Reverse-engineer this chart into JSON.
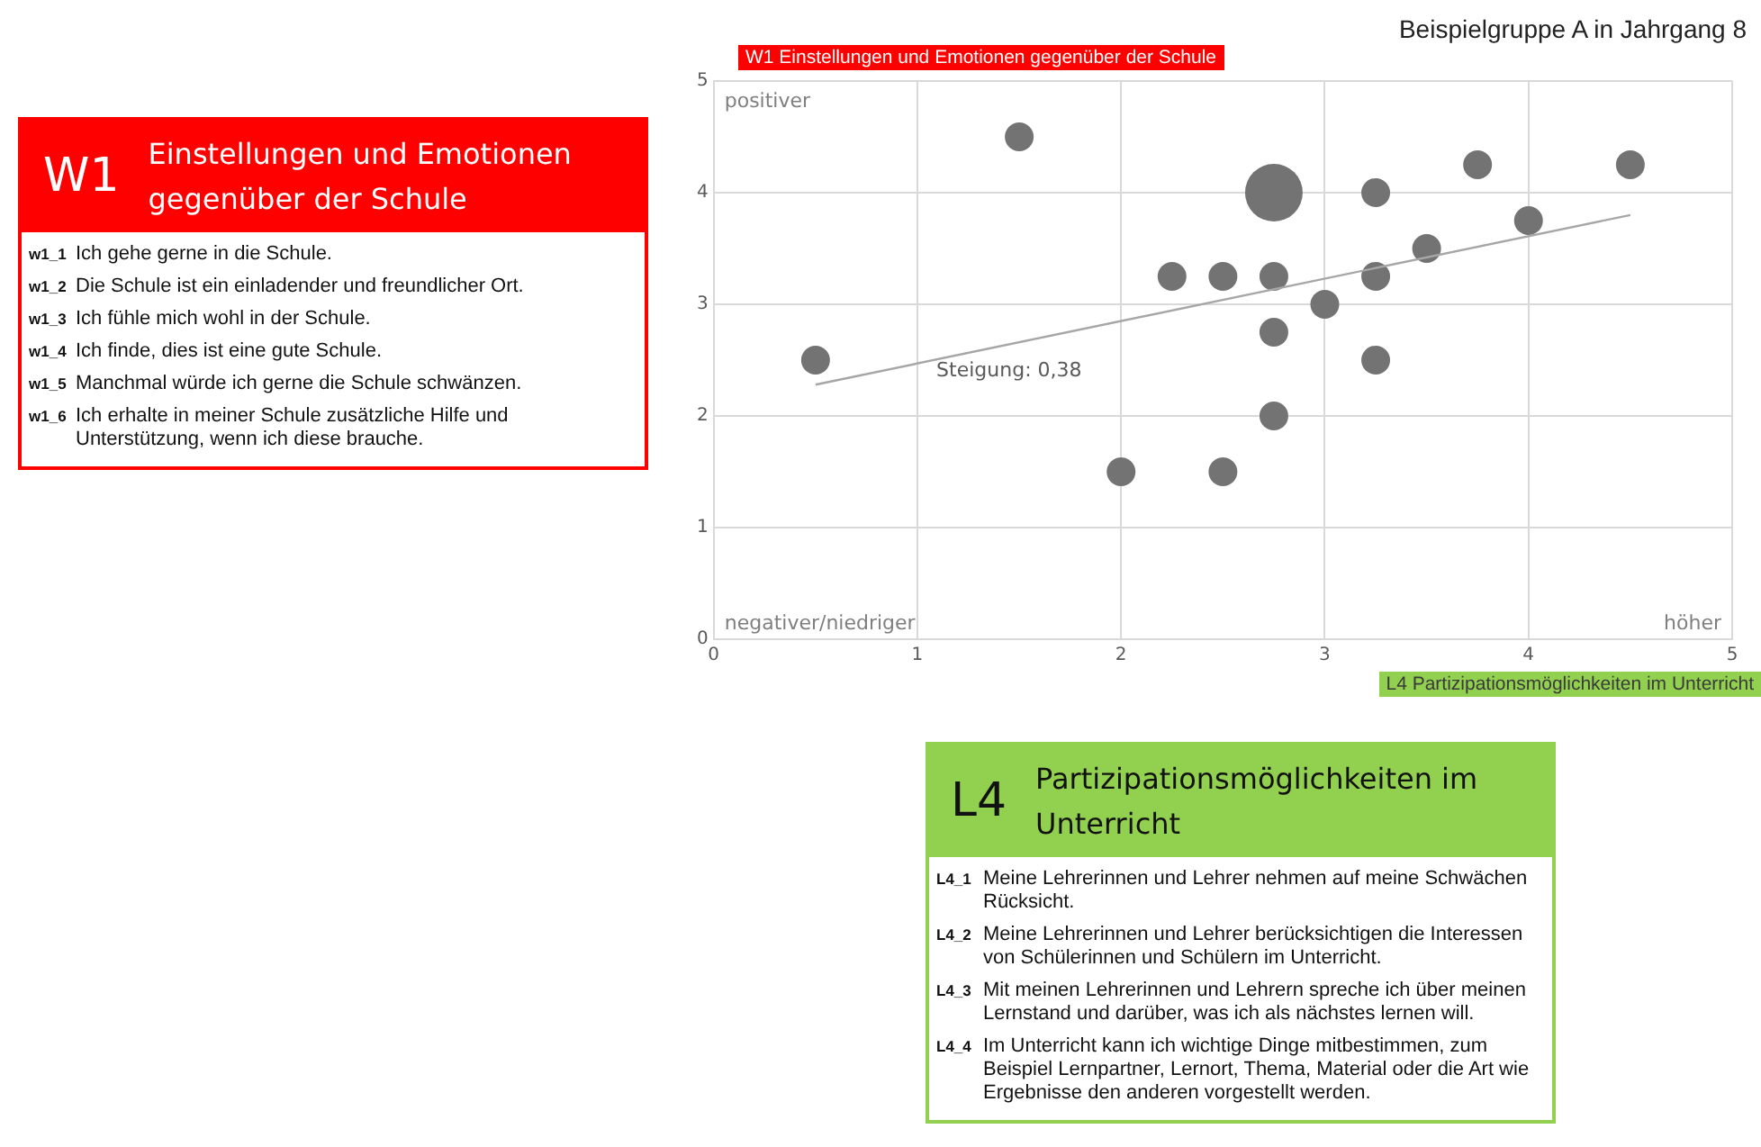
{
  "chart_data": [
    {
      "type": "bubble",
      "title": "Beispielgruppe A in Jahrgang 8",
      "xlabel": "L4 Partizipationsmöglichkeiten im Unterricht",
      "ylabel": "W1 Einstellungen und Emotionen gegenüber der Schule",
      "series": [
        {
          "type": "bubble",
          "color": "#737373",
          "x": [
            0.5,
            1.5,
            2.75,
            3.25,
            3.75,
            4.5,
            4,
            3.5,
            2.25,
            2.5,
            2.75,
            3.25,
            3,
            2.75,
            3.25,
            2.75,
            2,
            2.5
          ],
          "values": [
            2.5,
            4.5,
            4,
            4,
            4.25,
            4.25,
            3.75,
            3.5,
            3.25,
            3.25,
            3.25,
            3.25,
            3,
            2.75,
            2.5,
            2,
            1.5,
            1.5
          ],
          "sizes": [
            0.25,
            0.25,
            1,
            0.25,
            0.25,
            0.25,
            0.25,
            0.25,
            0.25,
            0.25,
            0.25,
            0.25,
            0.25,
            0.25,
            0.25,
            0.25,
            0.25,
            0.25
          ]
        },
        {
          "type": "line",
          "color": "#a6a6a6",
          "x": [
            0.5,
            4.5
          ],
          "values": [
            2.28,
            3.8
          ]
        }
      ],
      "xlim": [
        0,
        5
      ],
      "xticks": [
        0,
        1,
        2,
        3,
        4,
        5
      ],
      "ylim": [
        0,
        5
      ],
      "yticks": [
        0,
        1,
        2,
        3,
        4,
        5
      ],
      "grid": true,
      "legend": false,
      "annotations": [
        "positiver",
        "negativer/niedriger",
        "höher",
        "Steigung: 0,38"
      ]
    },
    {
      "type": "other",
      "title": "W1",
      "subtitle": "Einstellungen und Emotionen gegenüber der Schule",
      "color": "#ff0000",
      "annotations": [
        "w1_1 Ich gehe gerne in die Schule.",
        "w1_2 Die Schule ist ein einladender und freundlicher Ort.",
        "w1_3 Ich fühle mich wohl in der Schule.",
        "w1_4 Ich finde, dies ist eine gute Schule.",
        "w1_5 Manchmal würde ich gerne die Schule schwänzen.",
        "w1_6 Ich erhalte in meiner Schule zusätzliche Hilfe und Unterstützung, wenn ich diese brauche."
      ]
    },
    {
      "type": "other",
      "title": "L4",
      "subtitle": "Partizipationsmöglichkeiten im Unterricht",
      "color": "#92d050",
      "annotations": [
        "L4_1 Meine Lehrerinnen und Lehrer nehmen auf meine Schwächen Rücksicht.",
        "L4_2 Meine Lehrerinnen und Lehrer berücksichtigen die Interessen von Schülerinnen und Schülern im Unterricht.",
        "L4_3 Mit meinen Lehrerinnen und Lehrern spreche ich über meinen Lernstand und darüber, was ich als nächstes lernen will.",
        "L4_4 Im Unterricht kann ich wichtige Dinge mitbestimmen, zum Beispiel Lernpartner, Lernort, Thema, Material oder die Art wie Ergebnisse den anderen vorgestellt werden."
      ]
    }
  ]
}
